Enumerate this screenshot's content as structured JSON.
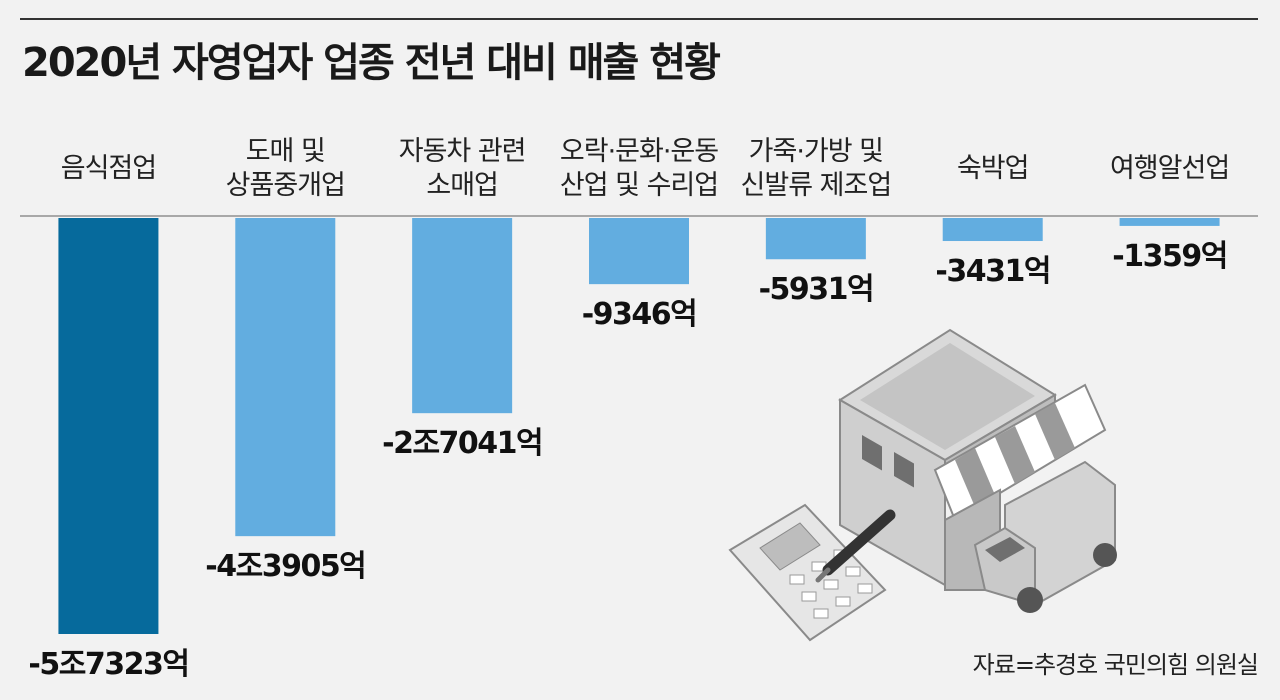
{
  "title": "2020년 자영업자 업종 전년 대비 매출 현황",
  "source": "자료=추경호 국민의힘 의원실",
  "colors": {
    "highlight": "#066a9c",
    "bar": "#62ade0",
    "axis": "#a8a8a8",
    "background": "#f2f2f2"
  },
  "chart_data": {
    "type": "bar",
    "unit": "억",
    "categories": [
      [
        "음식점업"
      ],
      [
        "도매 및",
        "상품중개업"
      ],
      [
        "자동차 관련",
        "소매업"
      ],
      [
        "오락·문화·운동",
        "산업 및 수리업"
      ],
      [
        "가죽·가방 및",
        "신발류 제조업"
      ],
      [
        "숙박업"
      ],
      [
        "여행알선업"
      ]
    ],
    "values": [
      -57323,
      -43905,
      -27041,
      -9346,
      -5931,
      -3431,
      -1359
    ],
    "value_labels": [
      "-5조7323억",
      "-4조3905억",
      "-2조7041억",
      "-9346억",
      "-5931억",
      "-3431억",
      "-1359억"
    ],
    "highlight_index": 0,
    "grid": false
  }
}
